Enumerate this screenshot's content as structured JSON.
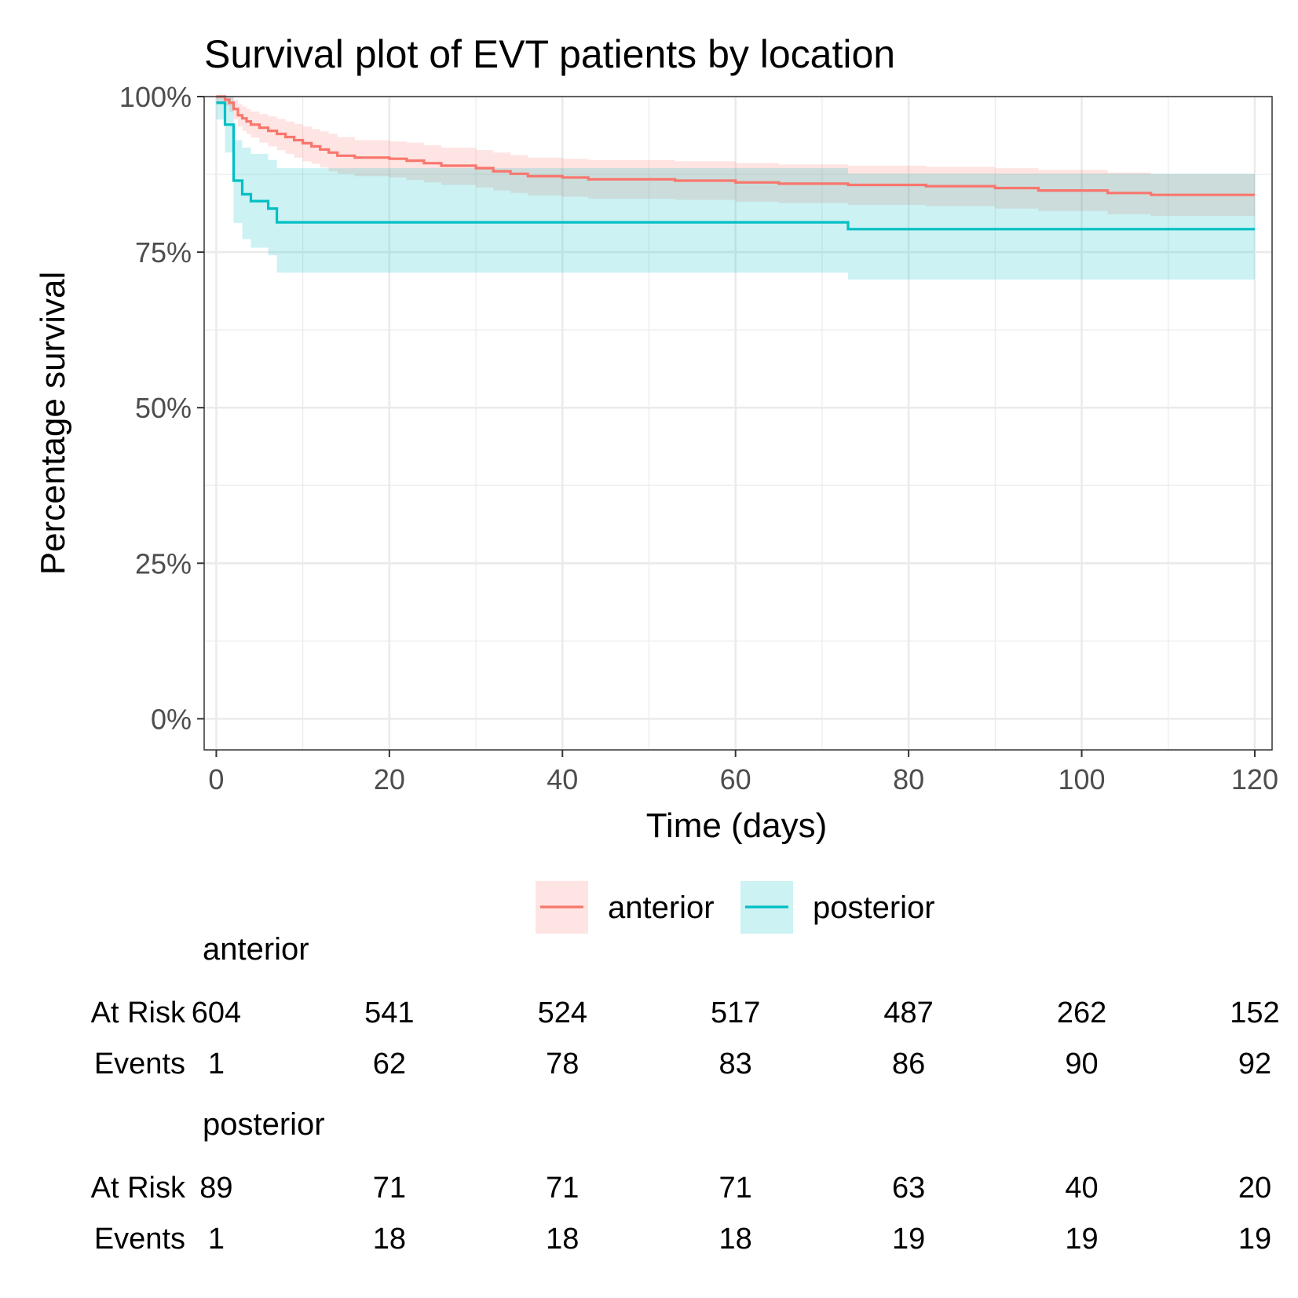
{
  "colors": {
    "anterior": "#F8766D",
    "posterior": "#00BFC4",
    "anterior_fill": "#F8766D",
    "posterior_fill": "#00BFC4"
  },
  "chart_data": {
    "type": "line",
    "title": "Survival plot of EVT patients by location",
    "xlabel": "Time (days)",
    "ylabel": "Percentage survival",
    "xlim": [
      -1.4,
      122
    ],
    "ylim": [
      -0.05,
      1.0
    ],
    "x_ticks": [
      0,
      20,
      40,
      60,
      80,
      100,
      120
    ],
    "y_ticks": [
      0,
      0.25,
      0.5,
      0.75,
      1.0
    ],
    "y_tick_labels": [
      "0%",
      "25%",
      "50%",
      "75%",
      "100%"
    ],
    "x_tick_labels": [
      "0",
      "20",
      "40",
      "60",
      "80",
      "100",
      "120"
    ],
    "grid": true,
    "legend_position": "bottom",
    "series": [
      {
        "name": "anterior",
        "step_x": [
          0,
          1,
          1.5,
          2,
          2.5,
          3,
          3.5,
          4,
          5,
          6,
          7,
          8,
          9,
          10,
          11,
          12,
          13,
          14,
          16,
          20,
          22,
          24,
          26,
          30,
          32,
          34,
          36,
          40,
          43,
          53,
          60,
          65,
          73,
          82,
          90,
          95,
          103,
          108,
          120
        ],
        "step_y": [
          1.0,
          0.995,
          0.99,
          0.98,
          0.97,
          0.965,
          0.96,
          0.955,
          0.95,
          0.945,
          0.94,
          0.935,
          0.93,
          0.925,
          0.92,
          0.915,
          0.91,
          0.905,
          0.902,
          0.9,
          0.897,
          0.893,
          0.889,
          0.885,
          0.88,
          0.876,
          0.872,
          0.87,
          0.867,
          0.865,
          0.862,
          0.86,
          0.858,
          0.856,
          0.853,
          0.849,
          0.845,
          0.842,
          0.842
        ],
        "ci_lower": [
          0.99,
          0.985,
          0.975,
          0.963,
          0.952,
          0.945,
          0.94,
          0.934,
          0.926,
          0.92,
          0.914,
          0.908,
          0.902,
          0.896,
          0.892,
          0.886,
          0.88,
          0.876,
          0.872,
          0.87,
          0.866,
          0.862,
          0.858,
          0.854,
          0.849,
          0.845,
          0.841,
          0.839,
          0.836,
          0.834,
          0.831,
          0.829,
          0.826,
          0.824,
          0.82,
          0.816,
          0.811,
          0.808,
          0.808
        ],
        "ci_upper": [
          1.0,
          1.0,
          1.0,
          0.995,
          0.988,
          0.984,
          0.98,
          0.976,
          0.972,
          0.968,
          0.964,
          0.96,
          0.956,
          0.952,
          0.948,
          0.944,
          0.94,
          0.935,
          0.93,
          0.928,
          0.926,
          0.922,
          0.918,
          0.914,
          0.91,
          0.906,
          0.902,
          0.9,
          0.898,
          0.896,
          0.893,
          0.891,
          0.889,
          0.887,
          0.885,
          0.882,
          0.878,
          0.875,
          0.875
        ]
      },
      {
        "name": "posterior",
        "step_x": [
          0,
          1,
          2,
          3,
          4,
          6,
          7,
          73,
          120
        ],
        "step_y": [
          0.99,
          0.955,
          0.865,
          0.843,
          0.832,
          0.82,
          0.798,
          0.787,
          0.787
        ],
        "ci_lower": [
          0.963,
          0.91,
          0.797,
          0.771,
          0.757,
          0.745,
          0.717,
          0.706,
          0.706
        ],
        "ci_upper": [
          1.0,
          1.0,
          0.93,
          0.918,
          0.908,
          0.898,
          0.885,
          0.876,
          0.876
        ]
      }
    ],
    "risk_table": {
      "row_labels": [
        "At Risk",
        "Events"
      ],
      "time_points": [
        0,
        20,
        40,
        60,
        80,
        100,
        120
      ],
      "groups": [
        {
          "name": "anterior",
          "at_risk": [
            "604",
            "541",
            "524",
            "517",
            "487",
            "262",
            "152"
          ],
          "events": [
            "1",
            "62",
            "78",
            "83",
            "86",
            "90",
            "92"
          ]
        },
        {
          "name": "posterior",
          "at_risk": [
            "89",
            "71",
            "71",
            "71",
            "63",
            "40",
            "20"
          ],
          "events": [
            "1",
            "18",
            "18",
            "18",
            "19",
            "19",
            "19"
          ]
        }
      ]
    }
  }
}
